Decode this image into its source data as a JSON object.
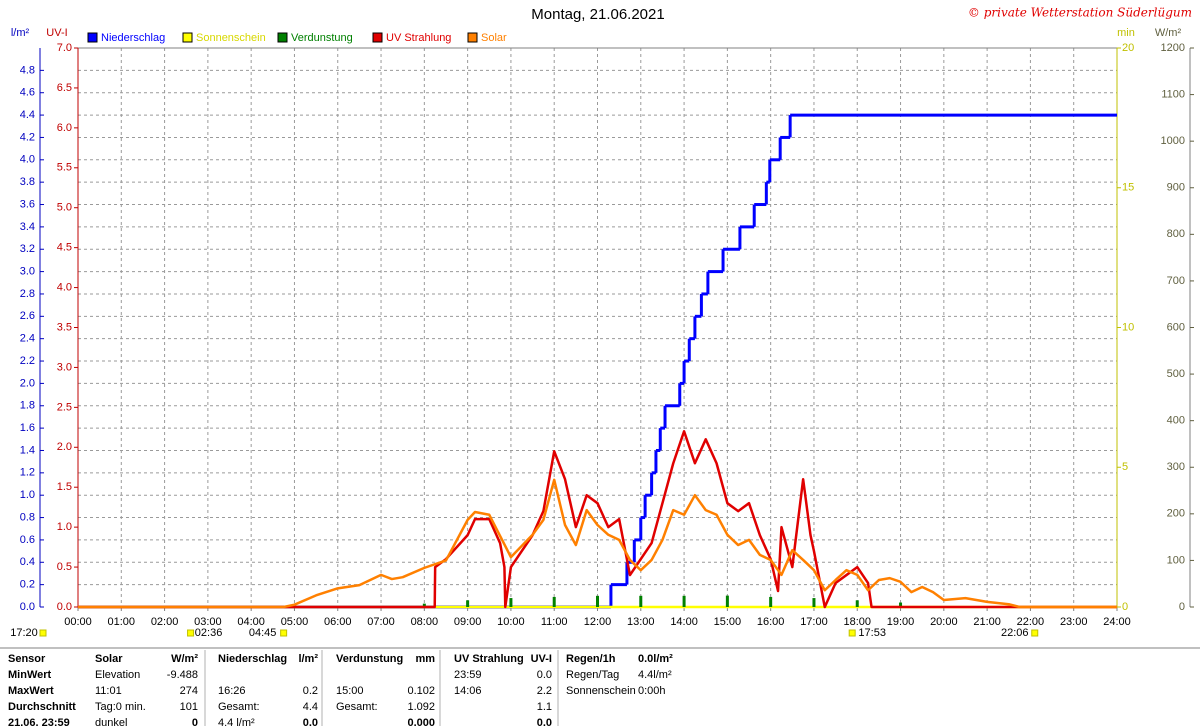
{
  "chart_data": {
    "type": "line",
    "title": "Montag, 21.06.2021",
    "copyright": "© private Wetterstation Süderlügum",
    "xlim": [
      0,
      24
    ],
    "xticks": [
      {
        "value": 0,
        "label": "00:00"
      },
      {
        "value": 1,
        "label": "01:00"
      },
      {
        "value": 2,
        "label": "02:00"
      },
      {
        "value": 3,
        "label": "03:00"
      },
      {
        "value": 4,
        "label": "04:00"
      },
      {
        "value": 5,
        "label": "05:00"
      },
      {
        "value": 6,
        "label": "06:00"
      },
      {
        "value": 7,
        "label": "07:00"
      },
      {
        "value": 8,
        "label": "08:00"
      },
      {
        "value": 9,
        "label": "09:00"
      },
      {
        "value": 10,
        "label": "10:00"
      },
      {
        "value": 11,
        "label": "11:00"
      },
      {
        "value": 12,
        "label": "12:00"
      },
      {
        "value": 13,
        "label": "13:00"
      },
      {
        "value": 14,
        "label": "14:00"
      },
      {
        "value": 15,
        "label": "15:00"
      },
      {
        "value": 16,
        "label": "16:00"
      },
      {
        "value": 17,
        "label": "17:00"
      },
      {
        "value": 18,
        "label": "18:00"
      },
      {
        "value": 19,
        "label": "19:00"
      },
      {
        "value": 20,
        "label": "20:00"
      },
      {
        "value": 21,
        "label": "21:00"
      },
      {
        "value": 22,
        "label": "22:00"
      },
      {
        "value": 23,
        "label": "23:00"
      },
      {
        "value": 24,
        "label": "24:00"
      }
    ],
    "ylabel": "l/m²",
    "ylim": [
      0,
      5
    ],
    "yticks": [
      {
        "value": 0,
        "label": "0.0"
      },
      0.2,
      0.4,
      0.6,
      0.8,
      {
        "value": 1,
        "label": "1.0"
      },
      1.2,
      1.4,
      1.6,
      1.8,
      {
        "value": 2,
        "label": "2.0"
      },
      2.2,
      2.4,
      2.6,
      2.8,
      {
        "value": 3,
        "label": "3.0"
      },
      3.2,
      3.4,
      3.6,
      3.8,
      {
        "value": 4,
        "label": "4.0"
      },
      4.2,
      4.4,
      4.6,
      4.8
    ],
    "y2label": "UV-I",
    "y2lim": [
      0,
      7
    ],
    "y2ticks": [
      {
        "value": 0,
        "label": "0.0"
      },
      0.5,
      {
        "value": 1,
        "label": "1.0"
      },
      1.5,
      {
        "value": 2,
        "label": "2.0"
      },
      2.5,
      {
        "value": 3,
        "label": "3.0"
      },
      3.5,
      {
        "value": 4,
        "label": "4.0"
      },
      4.5,
      {
        "value": 5,
        "label": "5.0"
      },
      5.5,
      {
        "value": 6,
        "label": "6.0"
      },
      6.5,
      {
        "value": 7,
        "label": "7.0"
      }
    ],
    "y3label": "min",
    "y3lim": [
      0,
      20
    ],
    "y3ticks": [
      0,
      5,
      10,
      15,
      20
    ],
    "y4label": "W/m²",
    "y4lim": [
      0,
      1200
    ],
    "y4ticks": [
      0,
      100,
      200,
      300,
      400,
      500,
      600,
      700,
      800,
      900,
      1000,
      1100,
      1200
    ],
    "grid": true,
    "series": [
      {
        "name": "Niederschlag",
        "color": "#0000ff",
        "axis": "y",
        "step": true,
        "x": [
          0,
          12.31,
          12.68,
          12.85,
          13.0,
          13.1,
          13.25,
          13.35,
          13.45,
          13.56,
          13.9,
          14.0,
          14.12,
          14.25,
          14.4,
          14.55,
          14.9,
          15.29,
          15.62,
          15.9,
          15.98,
          16.22,
          16.45,
          24
        ],
        "values": [
          0,
          0.2,
          0.4,
          0.6,
          0.8,
          1.0,
          1.2,
          1.4,
          1.6,
          1.8,
          2.0,
          2.2,
          2.4,
          2.6,
          2.8,
          3.0,
          3.2,
          3.4,
          3.6,
          3.8,
          4.0,
          4.2,
          4.4,
          4.4
        ]
      },
      {
        "name": "Sonnenschein",
        "color": "#ffff00",
        "axis": "y3",
        "x": [
          0,
          24
        ],
        "values": [
          0,
          0
        ]
      },
      {
        "name": "Verdunstung",
        "color": "#008000",
        "axis": "y",
        "spikes": true,
        "x": [
          8,
          9,
          10,
          11,
          12,
          13,
          14,
          15,
          16,
          17,
          18,
          19
        ],
        "values": [
          0.03,
          0.06,
          0.08,
          0.09,
          0.1,
          0.1,
          0.1,
          0.102,
          0.09,
          0.08,
          0.06,
          0.04
        ]
      },
      {
        "name": "UV Strahlung",
        "color": "#e00000",
        "axis": "y2",
        "x": [
          0,
          8.24,
          8.25,
          8.5,
          9.0,
          9.17,
          9.5,
          9.75,
          9.85,
          9.87,
          10.0,
          10.5,
          10.75,
          11.0,
          11.25,
          11.5,
          11.75,
          12.0,
          12.25,
          12.5,
          12.75,
          13.0,
          13.25,
          13.5,
          13.75,
          14.0,
          14.25,
          14.5,
          14.75,
          15.0,
          15.25,
          15.5,
          15.75,
          16.0,
          16.17,
          16.25,
          16.5,
          16.75,
          16.92,
          17.0,
          17.25,
          17.5,
          17.75,
          18.0,
          18.25,
          18.33,
          24
        ],
        "values": [
          0,
          0,
          0.5,
          0.6,
          0.9,
          1.1,
          1.1,
          0.8,
          0.5,
          0,
          0.5,
          0.9,
          1.2,
          1.95,
          1.6,
          1.0,
          1.4,
          1.3,
          1.0,
          1.1,
          0.4,
          0.6,
          0.8,
          1.3,
          1.8,
          2.2,
          1.8,
          2.1,
          1.8,
          1.3,
          1.2,
          1.3,
          0.9,
          0.6,
          0.2,
          1.0,
          0.5,
          1.6,
          0.9,
          0.7,
          0,
          0.3,
          0.4,
          0.5,
          0.3,
          0,
          0
        ]
      },
      {
        "name": "Solar",
        "color": "#ff8000",
        "axis": "y4",
        "x": [
          0,
          4.75,
          5.0,
          5.5,
          6.0,
          6.5,
          7.0,
          7.25,
          7.5,
          8.0,
          8.5,
          9.0,
          9.17,
          9.5,
          10.0,
          10.5,
          10.75,
          11.0,
          11.25,
          11.5,
          11.75,
          12.0,
          12.25,
          12.5,
          12.75,
          13.0,
          13.25,
          13.5,
          13.75,
          14.0,
          14.25,
          14.5,
          14.75,
          15.0,
          15.25,
          15.5,
          15.75,
          16.0,
          16.25,
          16.5,
          16.75,
          17.0,
          17.25,
          17.5,
          17.75,
          18.0,
          18.25,
          18.5,
          18.75,
          19.0,
          19.25,
          19.5,
          19.75,
          20.0,
          20.5,
          21.0,
          21.5,
          21.75,
          24
        ],
        "values": [
          0,
          0,
          5,
          25,
          40,
          47,
          69,
          60,
          64,
          84,
          100,
          187,
          204,
          198,
          107,
          155,
          187,
          273,
          176,
          133,
          208,
          176,
          155,
          144,
          101,
          79,
          101,
          144,
          208,
          198,
          240,
          208,
          198,
          155,
          133,
          144,
          112,
          101,
          69,
          122,
          101,
          79,
          36,
          58,
          79,
          69,
          36,
          58,
          62,
          54,
          32,
          43,
          32,
          15,
          19,
          11,
          6,
          0,
          0
        ]
      }
    ],
    "annotations": [
      {
        "text": "17:20"
      },
      {
        "text": "02:36",
        "x": 2.6
      },
      {
        "text": "04:45",
        "x": 4.75
      },
      {
        "text": "17:53",
        "x": 17.883
      },
      {
        "text": "22:06",
        "x": 22.1
      }
    ]
  },
  "table": {
    "rows": [
      [
        "Sensor",
        "Solar",
        "W/m²",
        "Niederschlag",
        "l/m²",
        "Verdunstung",
        "mm",
        "UV Strahlung",
        "UV-I",
        "Regen/1h",
        "0.0l/m²"
      ],
      [
        "MinWert",
        "Elevation",
        "-9.488",
        null,
        null,
        null,
        null,
        "23:59",
        "0.0",
        "Regen/Tag",
        "4.4l/m²"
      ],
      [
        "MaxWert",
        "11:01",
        "274",
        "16:26",
        "0.2",
        "15:00",
        "0.102",
        "14:06",
        "2.2",
        "Sonnenschein",
        "0:00h"
      ],
      [
        "Durchschnitt",
        "Tag:0 min.",
        "101",
        "Gesamt:",
        "4.4",
        "Gesamt:",
        "1.092",
        null,
        "1.1",
        null,
        null
      ],
      [
        "21.06. 23:59",
        "dunkel",
        "0",
        "4.4 l/m²",
        "0.0",
        null,
        "0.000",
        null,
        "0.0",
        null,
        null
      ]
    ]
  }
}
